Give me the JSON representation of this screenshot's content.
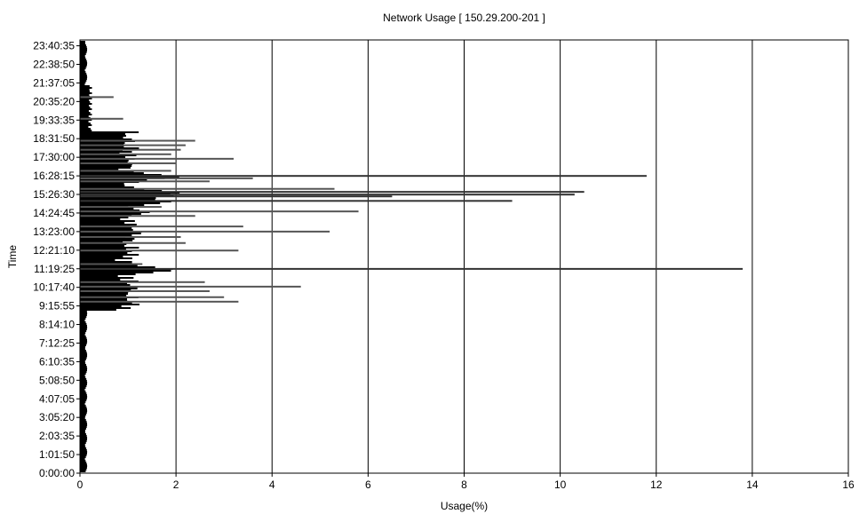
{
  "chart_data": {
    "type": "bar",
    "orientation": "horizontal",
    "title": "Network Usage  [ 150.29.200-201 ]",
    "xlabel": "Usage(%)",
    "ylabel": "Time",
    "xlim": [
      0,
      16
    ],
    "x_ticks": [
      "0",
      "2",
      "4",
      "6",
      "8",
      "10",
      "12",
      "14",
      "16"
    ],
    "y_ticks": [
      "0:00:00",
      "1:01:50",
      "2:03:35",
      "3:05:20",
      "4:07:05",
      "5:08:50",
      "6:10:35",
      "7:12:25",
      "8:14:10",
      "9:15:55",
      "10:17:40",
      "11:19:25",
      "12:21:10",
      "13:23:00",
      "14:24:45",
      "15:26:30",
      "16:28:15",
      "17:30:00",
      "18:31:50",
      "19:33:35",
      "20:35:20",
      "21:37:05",
      "22:38:50",
      "23:40:35"
    ],
    "ylim_hours": [
      0,
      24
    ],
    "grid_x": true,
    "grid_y": false,
    "bar_color": "#000000",
    "spike_color": "#555555",
    "spikes": [
      {
        "time": "9:30",
        "value": 3.3
      },
      {
        "time": "9:45",
        "value": 3.0
      },
      {
        "time": "10:05",
        "value": 2.7
      },
      {
        "time": "10:20",
        "value": 4.6
      },
      {
        "time": "10:35",
        "value": 2.6
      },
      {
        "time": "11:19",
        "value": 13.8
      },
      {
        "time": "11:35",
        "value": 1.3
      },
      {
        "time": "12:20",
        "value": 3.3
      },
      {
        "time": "12:45",
        "value": 2.2
      },
      {
        "time": "13:05",
        "value": 2.1
      },
      {
        "time": "13:23",
        "value": 5.2
      },
      {
        "time": "13:40",
        "value": 3.4
      },
      {
        "time": "14:15",
        "value": 2.4
      },
      {
        "time": "14:30",
        "value": 5.8
      },
      {
        "time": "14:45",
        "value": 1.7
      },
      {
        "time": "15:05",
        "value": 9.0
      },
      {
        "time": "15:20",
        "value": 6.5
      },
      {
        "time": "15:26",
        "value": 10.3
      },
      {
        "time": "15:35",
        "value": 10.5
      },
      {
        "time": "15:45",
        "value": 5.3
      },
      {
        "time": "16:10",
        "value": 2.7
      },
      {
        "time": "16:20",
        "value": 3.6
      },
      {
        "time": "16:28",
        "value": 11.8
      },
      {
        "time": "16:45",
        "value": 1.9
      },
      {
        "time": "17:10",
        "value": 2.0
      },
      {
        "time": "17:25",
        "value": 3.2
      },
      {
        "time": "17:40",
        "value": 1.9
      },
      {
        "time": "17:55",
        "value": 2.1
      },
      {
        "time": "18:10",
        "value": 2.2
      },
      {
        "time": "18:25",
        "value": 2.4
      },
      {
        "time": "19:38",
        "value": 0.9
      },
      {
        "time": "20:50",
        "value": 0.7
      }
    ]
  }
}
